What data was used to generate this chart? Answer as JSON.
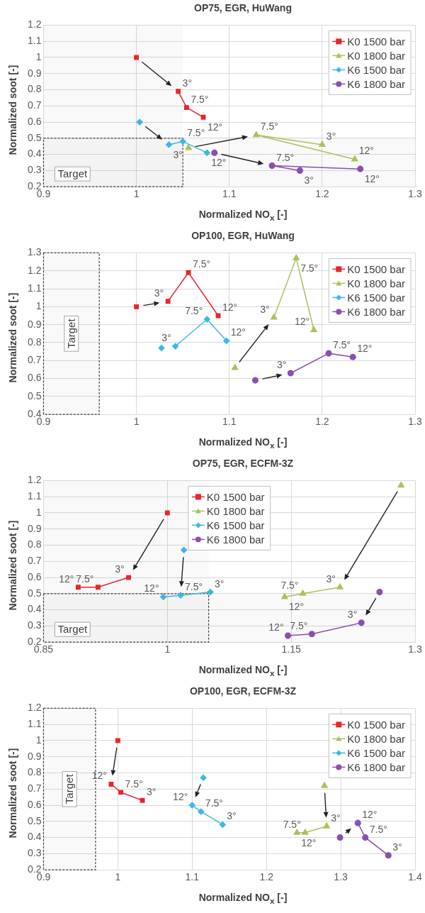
{
  "chart_data": [
    {
      "type": "line",
      "title": "OP75, EGR, HuWang",
      "xlabel": "Normalized NO$_{x}$ [-]",
      "ylabel": "Normalized soot [-]",
      "xlim": [
        0.9,
        1.3
      ],
      "xticks": [
        0.9,
        1,
        1.1,
        1.2,
        1.3
      ],
      "ylim": [
        0.2,
        1.2
      ],
      "yticks": [
        0.2,
        0.3,
        0.4,
        0.5,
        0.6,
        0.7,
        0.8,
        0.9,
        1,
        1.1,
        1.2
      ],
      "grid": true,
      "legend": "top right",
      "series": [
        {
          "name": "K0 1500 bar",
          "color": "#e8262b",
          "marker": "square",
          "x": [
            1.045,
            1.054,
            1.072
          ],
          "values": [
            0.79,
            0.69,
            0.63
          ]
        },
        {
          "name": "K0 1800 bar",
          "color": "#a9c25a",
          "marker": "triangle",
          "x": [
            1.2,
            1.129,
            1.235
          ],
          "values": [
            0.46,
            0.52,
            0.37
          ]
        },
        {
          "name": "K6 1500 bar",
          "color": "#3bb8e6",
          "marker": "diamond",
          "x": [
            1.035,
            1.05,
            1.076
          ],
          "values": [
            0.46,
            0.48,
            0.41
          ]
        },
        {
          "name": "K6 1800 bar",
          "color": "#8a4fb0",
          "marker": "circle",
          "x": [
            1.176,
            1.146,
            1.241
          ],
          "values": [
            0.3,
            0.33,
            0.31
          ]
        },
        {
          "type": "scatter",
          "color": "#e8262b",
          "marker": "square",
          "x": [
            1.0
          ],
          "values": [
            1.0
          ]
        },
        {
          "type": "scatter",
          "color": "#a9c25a",
          "marker": "triangle",
          "x": [
            1.056
          ],
          "values": [
            0.44
          ]
        },
        {
          "type": "scatter",
          "color": "#3bb8e6",
          "marker": "diamond",
          "x": [
            1.0035
          ],
          "values": [
            0.6
          ]
        },
        {
          "type": "scatter",
          "color": "#8a4fb0",
          "marker": "circle",
          "x": [
            1.084
          ],
          "values": [
            0.41
          ]
        }
      ],
      "annotations": [
        {
          "text": "3°",
          "x": 1.045,
          "y": 0.79
        },
        {
          "text": "7.5°",
          "x": 1.054,
          "y": 0.69
        },
        {
          "text": "12°",
          "x": 1.072,
          "y": 0.63
        },
        {
          "text": "3°",
          "x": 1.2,
          "y": 0.46
        },
        {
          "text": "7.5°",
          "x": 1.129,
          "y": 0.52
        },
        {
          "text": "12°",
          "x": 1.235,
          "y": 0.37
        },
        {
          "text": "3°",
          "x": 1.035,
          "y": 0.46
        },
        {
          "text": "7.5°",
          "x": 1.05,
          "y": 0.48
        },
        {
          "text": "12°",
          "x": 1.076,
          "y": 0.41
        },
        {
          "text": "3°",
          "x": 1.176,
          "y": 0.3
        },
        {
          "text": "7.5°",
          "x": 1.146,
          "y": 0.33
        },
        {
          "text": "12°",
          "x": 1.241,
          "y": 0.31
        }
      ],
      "bands": [
        {
          "axis": "x",
          "from": 0.9,
          "to": 1.05,
          "label": "Target"
        },
        {
          "axis": "y",
          "from": 0.2,
          "to": 0.5
        }
      ]
    },
    {
      "type": "line",
      "title": "OP100, EGR, HuWang",
      "xlabel": "Normalized NO$_{x}$ [-]",
      "ylabel": "Normalized soot [-]",
      "xlim": [
        0.9,
        1.3
      ],
      "xticks": [
        0.9,
        1,
        1.1,
        1.2,
        1.3
      ],
      "ylim": [
        0.4,
        1.3
      ],
      "yticks": [
        0.4,
        0.5,
        0.6,
        0.7,
        0.8,
        0.9,
        1,
        1.1,
        1.2,
        1.3
      ],
      "grid": true,
      "legend": "top right",
      "series": [
        {
          "name": "K0 1500 bar",
          "color": "#e8262b",
          "marker": "square",
          "x": [
            1.034,
            1.056,
            1.088
          ],
          "values": [
            1.03,
            1.19,
            0.95
          ]
        },
        {
          "name": "K0 1800 bar",
          "color": "#a9c25a",
          "marker": "triangle",
          "x": [
            1.148,
            1.172,
            1.191
          ],
          "values": [
            0.94,
            1.27,
            0.87
          ]
        },
        {
          "name": "K6 1500 bar",
          "color": "#3bb8e6",
          "marker": "diamond",
          "x": [
            1.042,
            1.076,
            1.097
          ],
          "values": [
            0.78,
            0.93,
            0.81
          ]
        },
        {
          "name": "K6 1800 bar",
          "color": "#8a4fb0",
          "marker": "circle",
          "x": [
            1.166,
            1.207,
            1.233
          ],
          "values": [
            0.63,
            0.74,
            0.72
          ]
        },
        {
          "type": "scatter",
          "color": "#e8262b",
          "marker": "square",
          "x": [
            1.0
          ],
          "values": [
            1.0
          ]
        },
        {
          "type": "scatter",
          "color": "#a9c25a",
          "marker": "triangle",
          "x": [
            1.106
          ],
          "values": [
            0.66
          ]
        },
        {
          "type": "scatter",
          "color": "#3bb8e6",
          "marker": "diamond",
          "x": [
            1.027
          ],
          "values": [
            0.77
          ]
        },
        {
          "type": "scatter",
          "color": "#8a4fb0",
          "marker": "circle",
          "x": [
            1.128
          ],
          "values": [
            0.59
          ]
        }
      ],
      "annotations": [
        {
          "text": "3°",
          "x": 1.034,
          "y": 1.03
        },
        {
          "text": "7.5°",
          "x": 1.056,
          "y": 1.19
        },
        {
          "text": "12°",
          "x": 1.088,
          "y": 0.95
        },
        {
          "text": "3°",
          "x": 1.148,
          "y": 0.94
        },
        {
          "text": "7.5°",
          "x": 1.172,
          "y": 1.27
        },
        {
          "text": "12°",
          "x": 1.191,
          "y": 0.87
        },
        {
          "text": "3°",
          "x": 1.042,
          "y": 0.78
        },
        {
          "text": "7.5°",
          "x": 1.076,
          "y": 0.93
        },
        {
          "text": "12°",
          "x": 1.097,
          "y": 0.81
        },
        {
          "text": "3°",
          "x": 1.166,
          "y": 0.63
        },
        {
          "text": "7.5°",
          "x": 1.207,
          "y": 0.74
        },
        {
          "text": "12°",
          "x": 1.233,
          "y": 0.72
        }
      ],
      "bands": [
        {
          "axis": "x",
          "from": 0.9,
          "to": 0.96,
          "label": "Target"
        }
      ]
    },
    {
      "type": "line",
      "title": "OP75, EGR, ECFM-3Z",
      "xlabel": "Normalized NO$_{x}$ [-]",
      "ylabel": "Normalized soot [-]",
      "xlim": [
        0.85,
        1.3
      ],
      "xticks": [
        0.85,
        1,
        1.15,
        1.3
      ],
      "ylim": [
        0.2,
        1.2
      ],
      "yticks": [
        0.2,
        0.3,
        0.4,
        0.5,
        0.6,
        0.7,
        0.8,
        0.9,
        1,
        1.1,
        1.2
      ],
      "grid": true,
      "legend": "top",
      "series": [
        {
          "name": "K0 1500 bar",
          "color": "#e8262b",
          "marker": "square",
          "x": [
            0.953,
            0.916,
            0.892
          ],
          "values": [
            0.6,
            0.54,
            0.54
          ]
        },
        {
          "name": "K0 1800 bar",
          "color": "#a9c25a",
          "marker": "triangle",
          "x": [
            1.209,
            1.164,
            1.142
          ],
          "values": [
            0.54,
            0.5,
            0.48
          ]
        },
        {
          "name": "K6 1500 bar",
          "color": "#3bb8e6",
          "marker": "diamond",
          "x": [
            1.052,
            1.016,
            0.995
          ],
          "values": [
            0.51,
            0.49,
            0.48
          ]
        },
        {
          "name": "K6 1800 bar",
          "color": "#8a4fb0",
          "marker": "circle",
          "x": [
            1.235,
            1.175,
            1.146
          ],
          "values": [
            0.32,
            0.25,
            0.24
          ]
        },
        {
          "type": "scatter",
          "color": "#e8262b",
          "marker": "square",
          "x": [
            1.0
          ],
          "values": [
            1.0
          ]
        },
        {
          "type": "scatter",
          "color": "#a9c25a",
          "marker": "triangle",
          "x": [
            1.283
          ],
          "values": [
            1.17
          ]
        },
        {
          "type": "scatter",
          "color": "#3bb8e6",
          "marker": "diamond",
          "x": [
            1.02
          ],
          "values": [
            0.77
          ]
        },
        {
          "type": "scatter",
          "color": "#8a4fb0",
          "marker": "circle",
          "x": [
            1.257
          ],
          "values": [
            0.51
          ]
        }
      ],
      "annotations": [
        {
          "text": "3°",
          "x": 0.953,
          "y": 0.6
        },
        {
          "text": "7.5°",
          "x": 0.916,
          "y": 0.54
        },
        {
          "text": "12°",
          "x": 0.892,
          "y": 0.54
        },
        {
          "text": "3°",
          "x": 1.209,
          "y": 0.54
        },
        {
          "text": "7.5°",
          "x": 1.164,
          "y": 0.5
        },
        {
          "text": "12°",
          "x": 1.142,
          "y": 0.48
        },
        {
          "text": "3°",
          "x": 1.052,
          "y": 0.51
        },
        {
          "text": "7.5°",
          "x": 1.016,
          "y": 0.49
        },
        {
          "text": "12°",
          "x": 0.995,
          "y": 0.48
        },
        {
          "text": "3°",
          "x": 1.235,
          "y": 0.32
        },
        {
          "text": "7.5°",
          "x": 1.175,
          "y": 0.25
        },
        {
          "text": "12°",
          "x": 1.146,
          "y": 0.24
        }
      ],
      "bands": [
        {
          "axis": "x",
          "from": 0.85,
          "to": 1.05,
          "label": "Target"
        },
        {
          "axis": "y",
          "from": 0.2,
          "to": 0.5
        }
      ]
    },
    {
      "type": "line",
      "title": "OP100, EGR, ECFM-3Z",
      "xlabel": "Normalized NO$_{x}$ [-]",
      "ylabel": "Normalized soot [-]",
      "xlim": [
        0.9,
        1.4
      ],
      "xticks": [
        0.9,
        1,
        1.1,
        1.2,
        1.3,
        1.4
      ],
      "ylim": [
        0.2,
        1.2
      ],
      "yticks": [
        0.2,
        0.3,
        0.4,
        0.5,
        0.6,
        0.7,
        0.8,
        0.9,
        1,
        1.1,
        1.2
      ],
      "grid": true,
      "legend": "top right",
      "series": [
        {
          "name": "K0 1500 bar",
          "color": "#e8262b",
          "marker": "square",
          "x": [
            1.033,
            1.004,
            0.991
          ],
          "values": [
            0.63,
            0.68,
            0.73
          ]
        },
        {
          "name": "K0 1800 bar",
          "color": "#a9c25a",
          "marker": "triangle",
          "x": [
            1.281,
            1.252,
            1.241
          ],
          "values": [
            0.47,
            0.43,
            0.43
          ]
        },
        {
          "name": "K6 1500 bar",
          "color": "#3bb8e6",
          "marker": "diamond",
          "x": [
            1.141,
            1.112,
            1.1
          ],
          "values": [
            0.48,
            0.56,
            0.6
          ]
        },
        {
          "name": "K6 1800 bar",
          "color": "#8a4fb0",
          "marker": "circle",
          "x": [
            1.364,
            1.333,
            1.323
          ],
          "values": [
            0.29,
            0.4,
            0.49
          ]
        },
        {
          "type": "scatter",
          "color": "#e8262b",
          "marker": "square",
          "x": [
            1.0
          ],
          "values": [
            1.0
          ]
        },
        {
          "type": "scatter",
          "color": "#a9c25a",
          "marker": "triangle",
          "x": [
            1.278
          ],
          "values": [
            0.72
          ]
        },
        {
          "type": "scatter",
          "color": "#3bb8e6",
          "marker": "diamond",
          "x": [
            1.115
          ],
          "values": [
            0.77
          ]
        },
        {
          "type": "scatter",
          "color": "#8a4fb0",
          "marker": "circle",
          "x": [
            1.299
          ],
          "values": [
            0.4
          ]
        }
      ],
      "annotations": [
        {
          "text": "3°",
          "x": 1.033,
          "y": 0.63
        },
        {
          "text": "7.5°",
          "x": 1.004,
          "y": 0.68
        },
        {
          "text": "12°",
          "x": 0.991,
          "y": 0.73
        },
        {
          "text": "3°",
          "x": 1.281,
          "y": 0.47
        },
        {
          "text": "7.5°",
          "x": 1.252,
          "y": 0.43
        },
        {
          "text": "12°",
          "x": 1.241,
          "y": 0.43
        },
        {
          "text": "3°",
          "x": 1.141,
          "y": 0.48
        },
        {
          "text": "7.5°",
          "x": 1.112,
          "y": 0.56
        },
        {
          "text": "12°",
          "x": 1.1,
          "y": 0.6
        },
        {
          "text": "3°",
          "x": 1.364,
          "y": 0.29
        },
        {
          "text": "7.5°",
          "x": 1.333,
          "y": 0.4
        },
        {
          "text": "12°",
          "x": 1.323,
          "y": 0.49
        }
      ],
      "bands": [
        {
          "axis": "x",
          "from": 0.9,
          "to": 0.97,
          "label": "Target"
        }
      ]
    }
  ]
}
